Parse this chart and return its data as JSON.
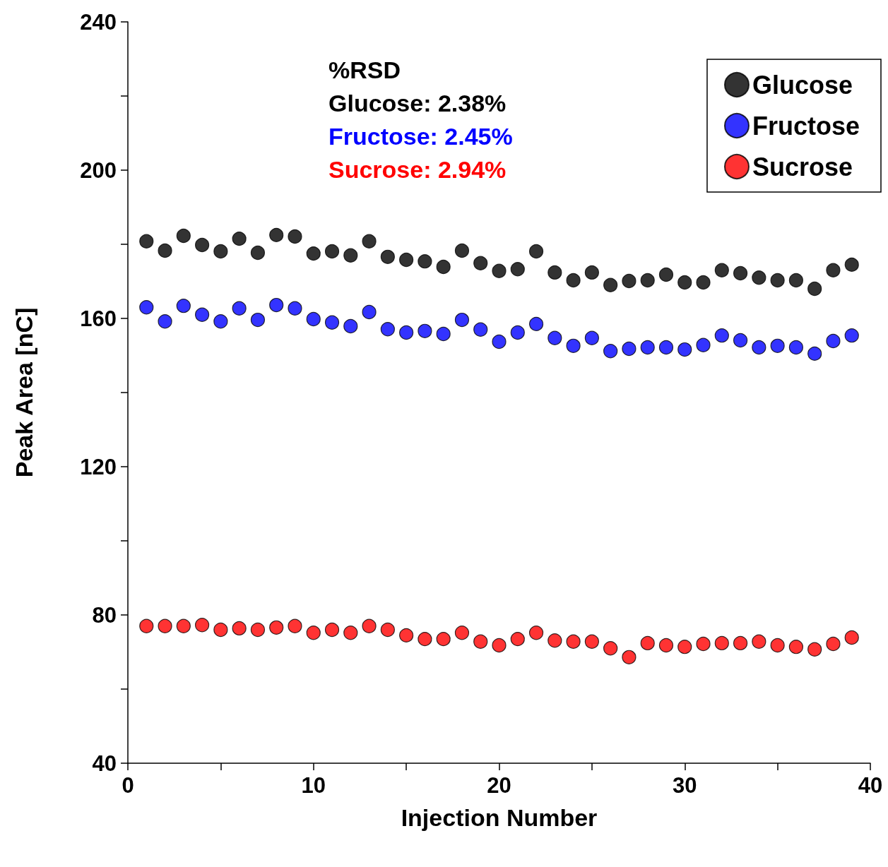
{
  "chart_data": {
    "type": "scatter",
    "xlabel": "Injection Number",
    "ylabel": "Peak Area [nC]",
    "x": [
      1,
      2,
      3,
      4,
      5,
      6,
      7,
      8,
      9,
      10,
      11,
      12,
      13,
      14,
      15,
      16,
      17,
      18,
      19,
      20,
      21,
      22,
      23,
      24,
      25,
      26,
      27,
      28,
      29,
      30,
      31,
      32,
      33,
      34,
      35,
      36,
      37,
      38,
      39
    ],
    "series": [
      {
        "name": "Glucose",
        "color": "#000000",
        "values": [
          180.8,
          178.3,
          182.3,
          179.8,
          178.1,
          181.5,
          177.7,
          182.5,
          182.1,
          177.5,
          178.1,
          177.0,
          180.8,
          176.6,
          175.8,
          175.4,
          173.9,
          178.3,
          174.9,
          172.8,
          173.3,
          178.1,
          172.4,
          170.3,
          172.4,
          169.0,
          170.1,
          170.3,
          171.8,
          169.7,
          169.7,
          173.0,
          172.2,
          171.0,
          170.3,
          170.3,
          168.0,
          173.0,
          174.5
        ]
      },
      {
        "name": "Fructose",
        "color": "#0000ff",
        "values": [
          163.0,
          159.2,
          163.4,
          161.0,
          159.2,
          162.7,
          159.6,
          163.6,
          162.7,
          159.8,
          158.9,
          157.9,
          161.7,
          157.1,
          156.2,
          156.6,
          155.8,
          159.6,
          157.0,
          153.7,
          156.2,
          158.5,
          154.7,
          152.6,
          154.7,
          151.2,
          151.8,
          152.2,
          152.2,
          151.6,
          152.8,
          155.4,
          154.1,
          152.2,
          152.6,
          152.2,
          150.5,
          153.9,
          155.4
        ]
      },
      {
        "name": "Sucrose",
        "color": "#ff0000",
        "values": [
          77.0,
          77.0,
          77.0,
          77.3,
          76.0,
          76.4,
          76.0,
          76.6,
          77.0,
          75.2,
          76.0,
          75.2,
          77.0,
          76.0,
          74.5,
          73.5,
          73.5,
          75.2,
          72.8,
          71.8,
          73.5,
          75.2,
          73.1,
          72.8,
          72.8,
          71.0,
          68.6,
          72.4,
          71.8,
          71.4,
          72.2,
          72.4,
          72.4,
          72.8,
          71.8,
          71.4,
          70.7,
          72.2,
          73.9
        ]
      }
    ],
    "xlim": [
      0,
      40
    ],
    "xticks": [
      0,
      {
        "value": 5,
        "label": null
      },
      10,
      {
        "value": 15,
        "label": null
      },
      20,
      {
        "value": 25,
        "label": null
      },
      30,
      {
        "value": 35,
        "label": null
      },
      40
    ],
    "ylim": [
      40,
      240
    ],
    "yticks": [
      40,
      {
        "value": 60,
        "label": null
      },
      80,
      {
        "value": 100,
        "label": null
      },
      120,
      {
        "value": 140,
        "label": null
      },
      160,
      {
        "value": 180,
        "label": null
      },
      200,
      {
        "value": 220,
        "label": null
      },
      240
    ],
    "annotations": [
      "%RSD",
      "Glucose: 2.38%",
      "Fructose: 2.45%",
      "Sucrose: 2.94%"
    ],
    "marker": "circle",
    "grid": false,
    "legend": "top right"
  }
}
